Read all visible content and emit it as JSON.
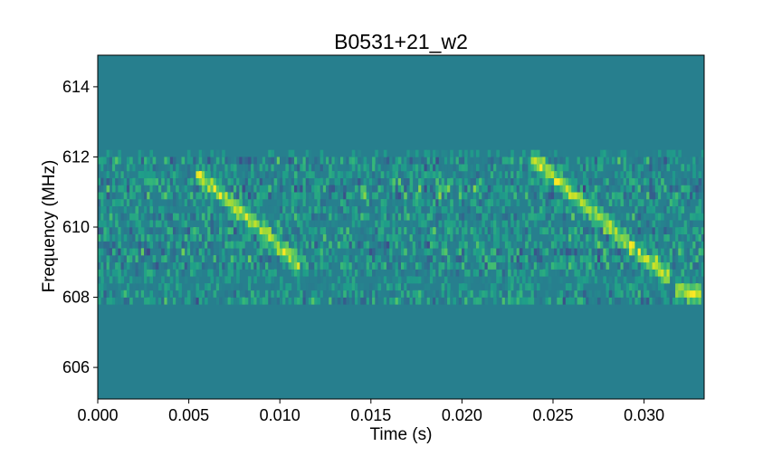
{
  "chart_data": {
    "type": "heatmap",
    "title": "B0531+21_w2",
    "xlabel": "Time (s)",
    "ylabel": "Frequency (MHz)",
    "xlim": [
      0.0,
      0.0333
    ],
    "ylim": [
      605.1,
      614.9
    ],
    "xticks": [
      0.0,
      0.005,
      0.01,
      0.015,
      0.02,
      0.025,
      0.03
    ],
    "xtick_labels": [
      "0.000",
      "0.005",
      "0.010",
      "0.015",
      "0.020",
      "0.025",
      "0.030"
    ],
    "yticks": [
      606,
      608,
      610,
      612,
      614
    ],
    "ytick_labels": [
      "606",
      "608",
      "610",
      "612",
      "614"
    ],
    "colormap": "viridis",
    "background_color": "#277f8e",
    "noise_band_mhz": [
      607.8,
      612.2
    ],
    "pulses": [
      {
        "t_start": 0.0055,
        "f_start": 611.5,
        "t_end": 0.011,
        "f_end": 609.0
      },
      {
        "t_start": 0.024,
        "f_start": 611.9,
        "t_end": 0.0312,
        "f_end": 608.6
      },
      {
        "t_start": 0.0318,
        "f_start": 608.2,
        "t_end": 0.033,
        "f_end": 608.1
      }
    ]
  }
}
